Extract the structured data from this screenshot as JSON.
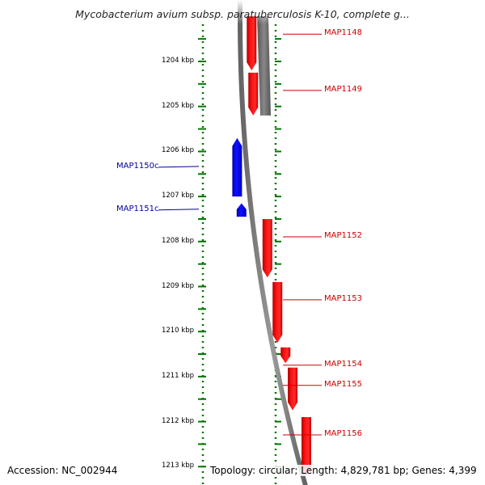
{
  "title": "Mycobacterium avium subsp. paratuberculosis K-10, complete g...",
  "footer": {
    "accession": "Accession: NC_002944",
    "summary": "Topology: circular; Length: 4,829,781 bp; Genes: 4,399"
  },
  "colors": {
    "forward_strand": "#ff0000",
    "reverse_strand": "#0000ff",
    "forward_label": "#cc0000",
    "reverse_label": "#000099",
    "ruler_ticks": "#007700",
    "backbone": "#808080",
    "other_feature": "#666666"
  },
  "axis": {
    "unit": "kbp",
    "ticks": [
      {
        "value": 1204,
        "label": "1204 kbp"
      },
      {
        "value": 1205,
        "label": "1205 kbp"
      },
      {
        "value": 1206,
        "label": "1206 kbp"
      },
      {
        "value": 1207,
        "label": "1207 kbp"
      },
      {
        "value": 1208,
        "label": "1208 kbp"
      },
      {
        "value": 1209,
        "label": "1209 kbp"
      },
      {
        "value": 1210,
        "label": "1210 kbp"
      },
      {
        "value": 1211,
        "label": "1211 kbp"
      },
      {
        "value": 1212,
        "label": "1212 kbp"
      },
      {
        "value": 1213,
        "label": "1213 kbp"
      }
    ]
  },
  "genes": [
    {
      "name": "MAP1148",
      "strand": "+",
      "start": 1203.0,
      "end": 1204.2
    },
    {
      "name": "MAP1149",
      "strand": "+",
      "start": 1204.25,
      "end": 1205.2
    },
    {
      "name": "MAP1150c",
      "strand": "-",
      "start": 1205.7,
      "end": 1207.0
    },
    {
      "name": "MAP1151c",
      "strand": "-",
      "start": 1207.15,
      "end": 1207.45
    },
    {
      "name": "MAP1152",
      "strand": "+",
      "start": 1207.5,
      "end": 1208.8
    },
    {
      "name": "MAP1153",
      "strand": "+",
      "start": 1208.9,
      "end": 1210.25
    },
    {
      "name": "MAP1154",
      "strand": "+",
      "start": 1210.35,
      "end": 1210.7
    },
    {
      "name": "MAP1155",
      "strand": "+",
      "start": 1210.8,
      "end": 1211.75
    },
    {
      "name": "MAP1156",
      "strand": "+",
      "start": 1211.9,
      "end": 1213.2
    }
  ],
  "other_features": [
    {
      "strand": "+",
      "start": 1203.0,
      "end": 1205.2
    }
  ]
}
